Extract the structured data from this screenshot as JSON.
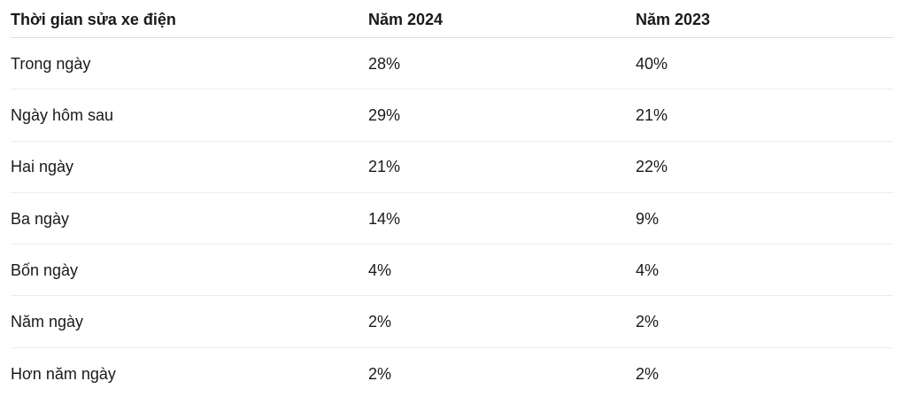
{
  "table": {
    "headers": [
      "Thời gian sửa xe điện",
      "Năm 2024",
      "Năm 2023"
    ],
    "rows": [
      [
        "Trong ngày",
        "28%",
        "40%"
      ],
      [
        "Ngày hôm sau",
        "29%",
        "21%"
      ],
      [
        "Hai ngày",
        "21%",
        "22%"
      ],
      [
        "Ba ngày",
        "14%",
        "9%"
      ],
      [
        "Bốn ngày",
        "4%",
        "4%"
      ],
      [
        "Năm ngày",
        "2%",
        "2%"
      ],
      [
        "Hơn năm ngày",
        "2%",
        "2%"
      ]
    ]
  }
}
